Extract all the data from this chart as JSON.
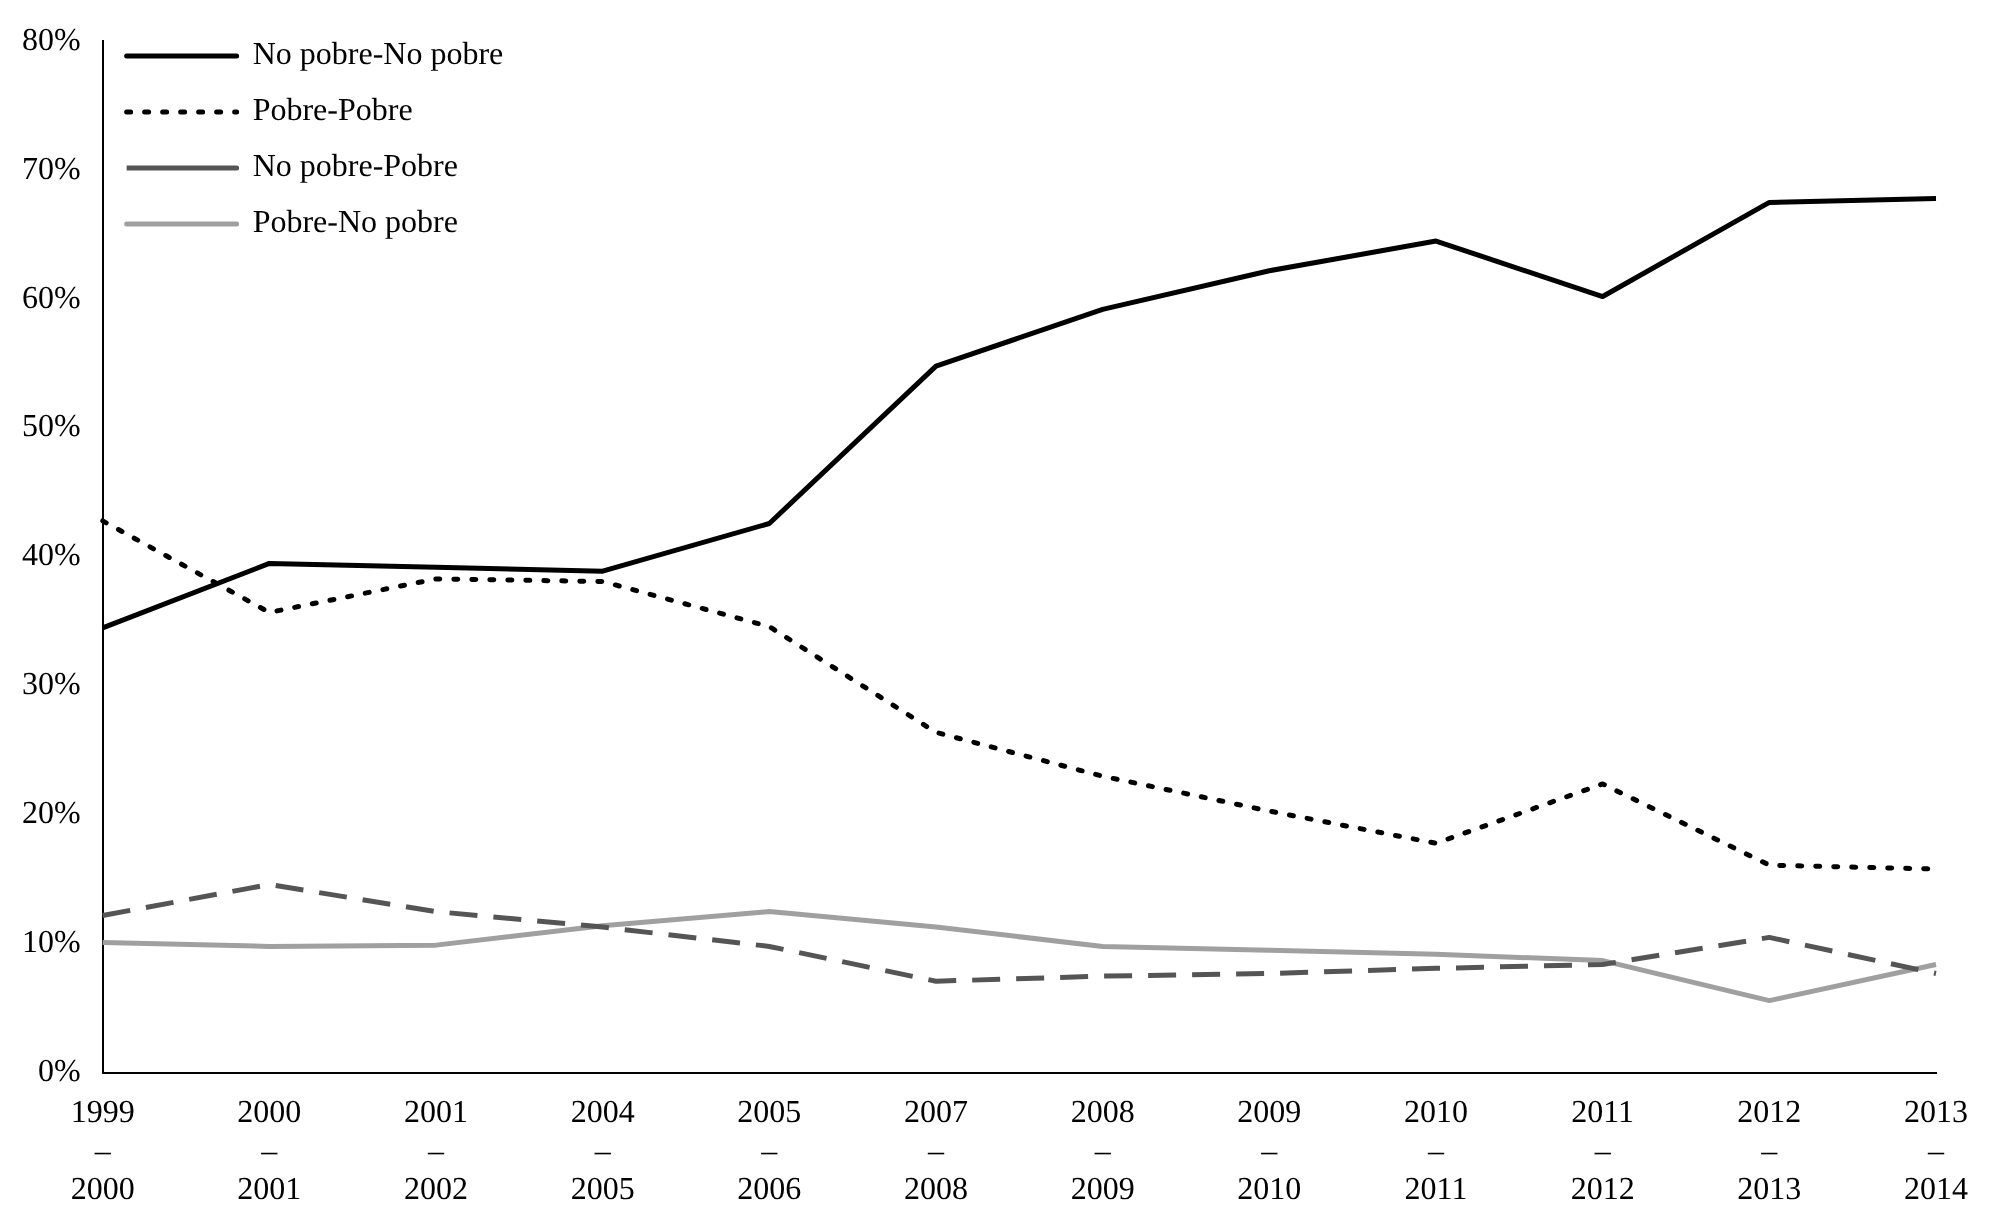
{
  "chart_data": {
    "type": "line",
    "categories": [
      "1999\n–\n2000",
      "2000\n–\n2001",
      "2001\n–\n2002",
      "2004\n–\n2005",
      "2005\n–\n2006",
      "2007\n–\n2008",
      "2008\n–\n2009",
      "2009\n–\n2010",
      "2010\n–\n2011",
      "2011\n–\n2012",
      "2012\n–\n2013",
      "2013\n–\n2014"
    ],
    "series": [
      {
        "name": "No pobre-No pobre",
        "color": "#000000",
        "line_style": "solid",
        "values": [
          34.5,
          39.5,
          39.2,
          38.9,
          42.6,
          54.8,
          59.2,
          62.2,
          64.5,
          60.2,
          67.5,
          67.8
        ]
      },
      {
        "name": "Pobre-Pobre",
        "color": "#000000",
        "line_style": "dotted",
        "values": [
          42.8,
          35.7,
          38.3,
          38.1,
          34.6,
          26.4,
          23.0,
          20.3,
          17.8,
          22.4,
          16.1,
          15.8
        ]
      },
      {
        "name": "No pobre-Pobre",
        "color": "#555555",
        "line_style": "dashed",
        "values": [
          12.2,
          14.6,
          12.5,
          11.3,
          9.8,
          7.1,
          7.5,
          7.7,
          8.1,
          8.4,
          10.5,
          7.7
        ]
      },
      {
        "name": "Pobre-No pobre",
        "color": "#a0a0a0",
        "line_style": "solid",
        "values": [
          10.1,
          9.8,
          9.9,
          11.4,
          12.5,
          11.3,
          9.8,
          9.5,
          9.2,
          8.7,
          5.6,
          8.4
        ]
      }
    ],
    "ylim": [
      0,
      80
    ],
    "yticks": [
      {
        "value": 0,
        "label": "0%"
      },
      {
        "value": 10,
        "label": "10%"
      },
      {
        "value": 20,
        "label": "20%"
      },
      {
        "value": 30,
        "label": "30%"
      },
      {
        "value": 40,
        "label": "40%"
      },
      {
        "value": 50,
        "label": "50%"
      },
      {
        "value": 60,
        "label": "60%"
      },
      {
        "value": 70,
        "label": "70%"
      },
      {
        "value": 80,
        "label": "80%"
      }
    ],
    "grid": false,
    "legend": "top left",
    "marker": "none"
  }
}
